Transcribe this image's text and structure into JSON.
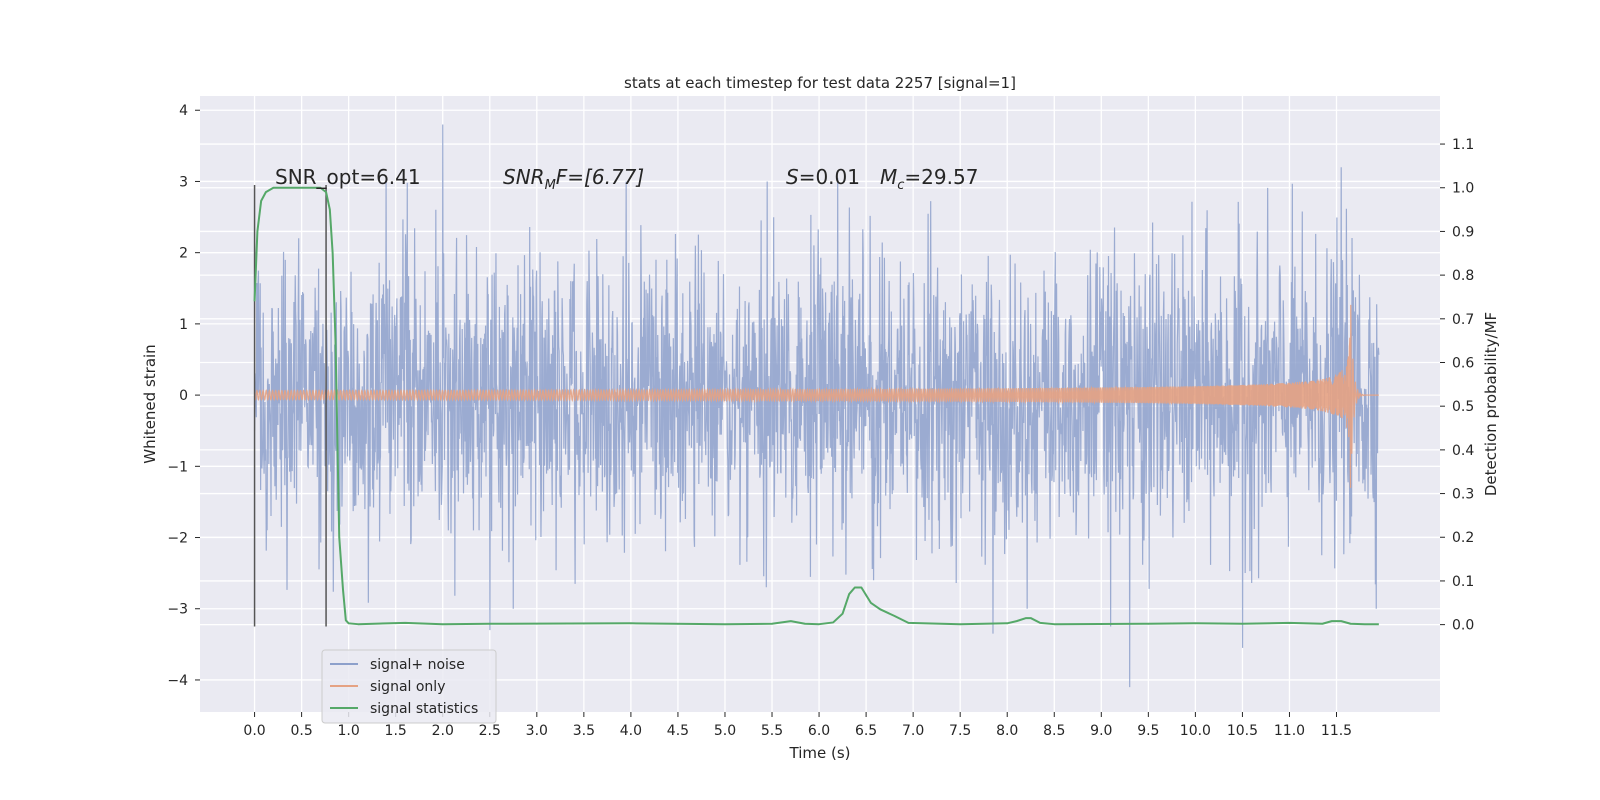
{
  "chart_data": {
    "type": "line",
    "title": "stats at each timestep for test data 2257 [signal=1]",
    "xlabel": "Time (s)",
    "ylabel": "Whitened strain",
    "y2label": "Detection probability/MF",
    "xlim": [
      -0.58,
      12.6
    ],
    "ylim": [
      -4.45,
      4.2
    ],
    "y2lim": [
      -0.2,
      1.21
    ],
    "xticks": [
      "0.0",
      "0.5",
      "1.0",
      "1.5",
      "2.0",
      "2.5",
      "3.0",
      "3.5",
      "4.0",
      "4.5",
      "5.0",
      "5.5",
      "6.0",
      "6.5",
      "7.0",
      "7.5",
      "8.0",
      "8.5",
      "9.0",
      "9.5",
      "10.0",
      "10.5",
      "11.0",
      "11.5"
    ],
    "yticks": [
      "4",
      "3",
      "2",
      "1",
      "0",
      "−1",
      "−2",
      "−3",
      "−4"
    ],
    "y2ticks": [
      "1.1",
      "1.0",
      "0.9",
      "0.8",
      "0.7",
      "0.6",
      "0.5",
      "0.4",
      "0.3",
      "0.2",
      "0.1",
      "0.0"
    ],
    "grid": true,
    "legend": {
      "placement": "lower-left"
    },
    "annotations": {
      "snr_opt": "SNR_opt=6.41",
      "snr_mf_sym": "SNR",
      "snr_mf_sub": "M",
      "snr_mf_rest": "F=[6.77]",
      "s_sym": "S",
      "s_rest": "=0.01",
      "mc_sym": "M",
      "mc_sub": "c",
      "mc_rest": "=29.57"
    },
    "markers": {
      "x": [
        0.0,
        0.76
      ],
      "y_range": [
        -3.25,
        2.95
      ]
    },
    "series": [
      {
        "name": "signal+ noise",
        "color": "#8da0cb",
        "t_range": [
          0.0,
          11.95
        ],
        "std": 1.0,
        "peaks": [
          [
            2.0,
            3.8
          ],
          [
            11.55,
            3.2
          ],
          [
            1.4,
            3.0
          ],
          [
            5.45,
            3.0
          ],
          [
            6.2,
            3.05
          ],
          [
            9.1,
            -3.25
          ],
          [
            9.3,
            -4.1
          ],
          [
            10.5,
            -3.55
          ],
          [
            7.85,
            -3.35
          ],
          [
            2.5,
            -3.3
          ]
        ]
      },
      {
        "name": "signal only",
        "color": "#e5a283",
        "t_merger": 11.65,
        "peak_amp": 1.4
      },
      {
        "name": "signal statistics",
        "color": "#55a868",
        "x": [
          0.0,
          0.03,
          0.07,
          0.12,
          0.2,
          0.3,
          0.5,
          0.7,
          0.76,
          0.8,
          0.83,
          0.86,
          0.9,
          0.94,
          0.97,
          1.0,
          1.1,
          1.6,
          2.0,
          2.5,
          4.0,
          5.0,
          5.5,
          5.7,
          5.85,
          6.0,
          6.15,
          6.25,
          6.32,
          6.38,
          6.45,
          6.55,
          6.65,
          6.8,
          6.95,
          7.1,
          7.3,
          7.5,
          8.0,
          8.1,
          8.2,
          8.25,
          8.35,
          8.5,
          9.5,
          10.0,
          10.5,
          11.0,
          11.35,
          11.45,
          11.55,
          11.65,
          11.8,
          11.95
        ],
        "y": [
          0.74,
          0.9,
          0.97,
          0.99,
          1.0,
          1.0,
          1.0,
          1.0,
          0.99,
          0.95,
          0.85,
          0.65,
          0.2,
          0.08,
          0.01,
          0.003,
          0.001,
          0.004,
          0.001,
          0.002,
          0.003,
          0.001,
          0.002,
          0.008,
          0.002,
          0.001,
          0.005,
          0.025,
          0.07,
          0.085,
          0.085,
          0.05,
          0.035,
          0.02,
          0.004,
          0.003,
          0.002,
          0.001,
          0.003,
          0.008,
          0.015,
          0.015,
          0.004,
          0.001,
          0.002,
          0.003,
          0.002,
          0.004,
          0.002,
          0.008,
          0.008,
          0.002,
          0.001,
          0.001
        ]
      }
    ]
  }
}
